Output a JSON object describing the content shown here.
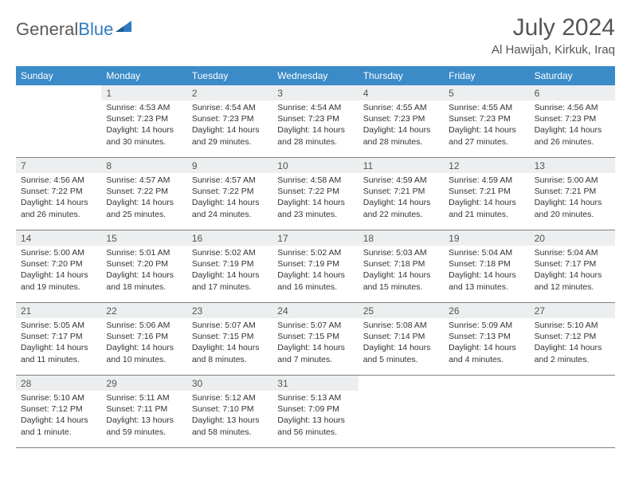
{
  "logo": {
    "text1": "General",
    "text2": "Blue"
  },
  "title": "July 2024",
  "location": "Al Hawijah, Kirkuk, Iraq",
  "colors": {
    "header_bg": "#3b8bc8",
    "header_text": "#ffffff",
    "daynum_bg": "#eceeef",
    "text": "#333333",
    "week_border": "#808080"
  },
  "weekdays": [
    "Sunday",
    "Monday",
    "Tuesday",
    "Wednesday",
    "Thursday",
    "Friday",
    "Saturday"
  ],
  "weeks": [
    [
      null,
      {
        "n": "1",
        "l1": "Sunrise: 4:53 AM",
        "l2": "Sunset: 7:23 PM",
        "l3": "Daylight: 14 hours",
        "l4": "and 30 minutes."
      },
      {
        "n": "2",
        "l1": "Sunrise: 4:54 AM",
        "l2": "Sunset: 7:23 PM",
        "l3": "Daylight: 14 hours",
        "l4": "and 29 minutes."
      },
      {
        "n": "3",
        "l1": "Sunrise: 4:54 AM",
        "l2": "Sunset: 7:23 PM",
        "l3": "Daylight: 14 hours",
        "l4": "and 28 minutes."
      },
      {
        "n": "4",
        "l1": "Sunrise: 4:55 AM",
        "l2": "Sunset: 7:23 PM",
        "l3": "Daylight: 14 hours",
        "l4": "and 28 minutes."
      },
      {
        "n": "5",
        "l1": "Sunrise: 4:55 AM",
        "l2": "Sunset: 7:23 PM",
        "l3": "Daylight: 14 hours",
        "l4": "and 27 minutes."
      },
      {
        "n": "6",
        "l1": "Sunrise: 4:56 AM",
        "l2": "Sunset: 7:23 PM",
        "l3": "Daylight: 14 hours",
        "l4": "and 26 minutes."
      }
    ],
    [
      {
        "n": "7",
        "l1": "Sunrise: 4:56 AM",
        "l2": "Sunset: 7:22 PM",
        "l3": "Daylight: 14 hours",
        "l4": "and 26 minutes."
      },
      {
        "n": "8",
        "l1": "Sunrise: 4:57 AM",
        "l2": "Sunset: 7:22 PM",
        "l3": "Daylight: 14 hours",
        "l4": "and 25 minutes."
      },
      {
        "n": "9",
        "l1": "Sunrise: 4:57 AM",
        "l2": "Sunset: 7:22 PM",
        "l3": "Daylight: 14 hours",
        "l4": "and 24 minutes."
      },
      {
        "n": "10",
        "l1": "Sunrise: 4:58 AM",
        "l2": "Sunset: 7:22 PM",
        "l3": "Daylight: 14 hours",
        "l4": "and 23 minutes."
      },
      {
        "n": "11",
        "l1": "Sunrise: 4:59 AM",
        "l2": "Sunset: 7:21 PM",
        "l3": "Daylight: 14 hours",
        "l4": "and 22 minutes."
      },
      {
        "n": "12",
        "l1": "Sunrise: 4:59 AM",
        "l2": "Sunset: 7:21 PM",
        "l3": "Daylight: 14 hours",
        "l4": "and 21 minutes."
      },
      {
        "n": "13",
        "l1": "Sunrise: 5:00 AM",
        "l2": "Sunset: 7:21 PM",
        "l3": "Daylight: 14 hours",
        "l4": "and 20 minutes."
      }
    ],
    [
      {
        "n": "14",
        "l1": "Sunrise: 5:00 AM",
        "l2": "Sunset: 7:20 PM",
        "l3": "Daylight: 14 hours",
        "l4": "and 19 minutes."
      },
      {
        "n": "15",
        "l1": "Sunrise: 5:01 AM",
        "l2": "Sunset: 7:20 PM",
        "l3": "Daylight: 14 hours",
        "l4": "and 18 minutes."
      },
      {
        "n": "16",
        "l1": "Sunrise: 5:02 AM",
        "l2": "Sunset: 7:19 PM",
        "l3": "Daylight: 14 hours",
        "l4": "and 17 minutes."
      },
      {
        "n": "17",
        "l1": "Sunrise: 5:02 AM",
        "l2": "Sunset: 7:19 PM",
        "l3": "Daylight: 14 hours",
        "l4": "and 16 minutes."
      },
      {
        "n": "18",
        "l1": "Sunrise: 5:03 AM",
        "l2": "Sunset: 7:18 PM",
        "l3": "Daylight: 14 hours",
        "l4": "and 15 minutes."
      },
      {
        "n": "19",
        "l1": "Sunrise: 5:04 AM",
        "l2": "Sunset: 7:18 PM",
        "l3": "Daylight: 14 hours",
        "l4": "and 13 minutes."
      },
      {
        "n": "20",
        "l1": "Sunrise: 5:04 AM",
        "l2": "Sunset: 7:17 PM",
        "l3": "Daylight: 14 hours",
        "l4": "and 12 minutes."
      }
    ],
    [
      {
        "n": "21",
        "l1": "Sunrise: 5:05 AM",
        "l2": "Sunset: 7:17 PM",
        "l3": "Daylight: 14 hours",
        "l4": "and 11 minutes."
      },
      {
        "n": "22",
        "l1": "Sunrise: 5:06 AM",
        "l2": "Sunset: 7:16 PM",
        "l3": "Daylight: 14 hours",
        "l4": "and 10 minutes."
      },
      {
        "n": "23",
        "l1": "Sunrise: 5:07 AM",
        "l2": "Sunset: 7:15 PM",
        "l3": "Daylight: 14 hours",
        "l4": "and 8 minutes."
      },
      {
        "n": "24",
        "l1": "Sunrise: 5:07 AM",
        "l2": "Sunset: 7:15 PM",
        "l3": "Daylight: 14 hours",
        "l4": "and 7 minutes."
      },
      {
        "n": "25",
        "l1": "Sunrise: 5:08 AM",
        "l2": "Sunset: 7:14 PM",
        "l3": "Daylight: 14 hours",
        "l4": "and 5 minutes."
      },
      {
        "n": "26",
        "l1": "Sunrise: 5:09 AM",
        "l2": "Sunset: 7:13 PM",
        "l3": "Daylight: 14 hours",
        "l4": "and 4 minutes."
      },
      {
        "n": "27",
        "l1": "Sunrise: 5:10 AM",
        "l2": "Sunset: 7:12 PM",
        "l3": "Daylight: 14 hours",
        "l4": "and 2 minutes."
      }
    ],
    [
      {
        "n": "28",
        "l1": "Sunrise: 5:10 AM",
        "l2": "Sunset: 7:12 PM",
        "l3": "Daylight: 14 hours",
        "l4": "and 1 minute."
      },
      {
        "n": "29",
        "l1": "Sunrise: 5:11 AM",
        "l2": "Sunset: 7:11 PM",
        "l3": "Daylight: 13 hours",
        "l4": "and 59 minutes."
      },
      {
        "n": "30",
        "l1": "Sunrise: 5:12 AM",
        "l2": "Sunset: 7:10 PM",
        "l3": "Daylight: 13 hours",
        "l4": "and 58 minutes."
      },
      {
        "n": "31",
        "l1": "Sunrise: 5:13 AM",
        "l2": "Sunset: 7:09 PM",
        "l3": "Daylight: 13 hours",
        "l4": "and 56 minutes."
      },
      null,
      null,
      null
    ]
  ]
}
